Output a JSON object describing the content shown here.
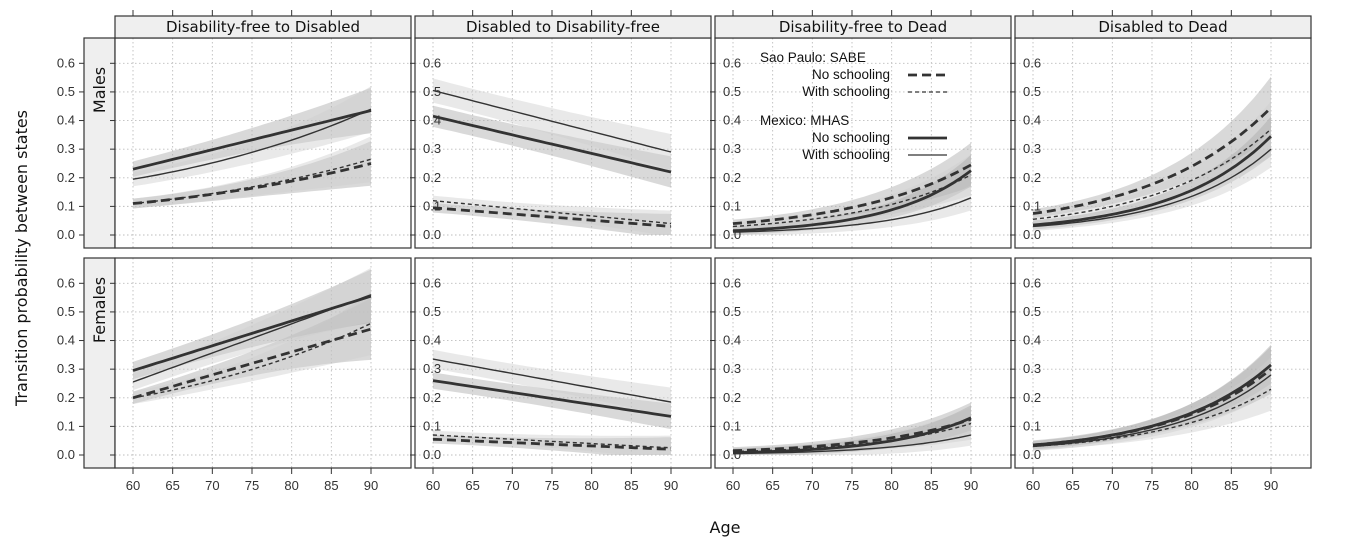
{
  "chart_data": {
    "type": "line",
    "xlabel": "Age",
    "ylabel": "Transition probability between states",
    "x": [
      60,
      90
    ],
    "x_ticks": [
      "60",
      "65",
      "70",
      "75",
      "80",
      "85",
      "90"
    ],
    "y_ticks": [
      "0.0",
      "0.1",
      "0.2",
      "0.3",
      "0.4",
      "0.5",
      "0.6"
    ],
    "ylim": [
      0,
      0.65
    ],
    "grid": true,
    "legend": {
      "placement": "inside third top panel",
      "groups": [
        {
          "title": "Sao Paulo: SABE",
          "entries": [
            "No schooling",
            "With schooling"
          ]
        },
        {
          "title": "Mexico: MHAS",
          "entries": [
            "No schooling",
            "With schooling"
          ]
        }
      ]
    },
    "colors": {
      "lines": "#333333",
      "band_light": "#cfcfcf",
      "band_dark": "#aaaaaa",
      "strip_bg": "#efefef"
    },
    "column_titles": [
      "Disability-free to Disabled",
      "Disabled to Disability-free",
      "Disability-free to Dead",
      "Disabled to Dead"
    ],
    "row_titles": [
      "Males",
      "Females"
    ],
    "panels": [
      {
        "row": "Males",
        "column": "Disability-free to Disabled",
        "series": [
          {
            "group": "Sao Paulo: SABE",
            "schooling": "No schooling",
            "y_at_60": 0.11,
            "y_at_90": 0.25
          },
          {
            "group": "Sao Paulo: SABE",
            "schooling": "With schooling",
            "y_at_60": 0.11,
            "y_at_90": 0.265
          },
          {
            "group": "Mexico: MHAS",
            "schooling": "No schooling",
            "y_at_60": 0.23,
            "y_at_90": 0.435
          },
          {
            "group": "Mexico: MHAS",
            "schooling": "With schooling",
            "y_at_60": 0.195,
            "y_at_90": 0.44
          }
        ]
      },
      {
        "row": "Males",
        "column": "Disabled to Disability-free",
        "series": [
          {
            "group": "Sao Paulo: SABE",
            "schooling": "No schooling",
            "y_at_60": 0.095,
            "y_at_90": 0.03
          },
          {
            "group": "Sao Paulo: SABE",
            "schooling": "With schooling",
            "y_at_60": 0.12,
            "y_at_90": 0.04
          },
          {
            "group": "Mexico: MHAS",
            "schooling": "No schooling",
            "y_at_60": 0.415,
            "y_at_90": 0.22
          },
          {
            "group": "Mexico: MHAS",
            "schooling": "With schooling",
            "y_at_60": 0.505,
            "y_at_90": 0.29
          }
        ]
      },
      {
        "row": "Males",
        "column": "Disability-free to Dead",
        "series": [
          {
            "group": "Sao Paulo: SABE",
            "schooling": "No schooling",
            "y_at_60": 0.04,
            "y_at_90": 0.245
          },
          {
            "group": "Sao Paulo: SABE",
            "schooling": "With schooling",
            "y_at_60": 0.03,
            "y_at_90": 0.21
          },
          {
            "group": "Mexico: MHAS",
            "schooling": "No schooling",
            "y_at_60": 0.015,
            "y_at_90": 0.225
          },
          {
            "group": "Mexico: MHAS",
            "schooling": "With schooling",
            "y_at_60": 0.01,
            "y_at_90": 0.13
          }
        ]
      },
      {
        "row": "Males",
        "column": "Disabled to Dead",
        "series": [
          {
            "group": "Sao Paulo: SABE",
            "schooling": "No schooling",
            "y_at_60": 0.075,
            "y_at_90": 0.445
          },
          {
            "group": "Sao Paulo: SABE",
            "schooling": "With schooling",
            "y_at_60": 0.055,
            "y_at_90": 0.37
          },
          {
            "group": "Mexico: MHAS",
            "schooling": "No schooling",
            "y_at_60": 0.035,
            "y_at_90": 0.345
          },
          {
            "group": "Mexico: MHAS",
            "schooling": "With schooling",
            "y_at_60": 0.03,
            "y_at_90": 0.3
          }
        ]
      },
      {
        "row": "Females",
        "column": "Disability-free to Disabled",
        "series": [
          {
            "group": "Sao Paulo: SABE",
            "schooling": "No schooling",
            "y_at_60": 0.2,
            "y_at_90": 0.44
          },
          {
            "group": "Sao Paulo: SABE",
            "schooling": "With schooling",
            "y_at_60": 0.2,
            "y_at_90": 0.46
          },
          {
            "group": "Mexico: MHAS",
            "schooling": "No schooling",
            "y_at_60": 0.295,
            "y_at_90": 0.555
          },
          {
            "group": "Mexico: MHAS",
            "schooling": "With schooling",
            "y_at_60": 0.255,
            "y_at_90": 0.56
          }
        ]
      },
      {
        "row": "Females",
        "column": "Disabled to Disability-free",
        "series": [
          {
            "group": "Sao Paulo: SABE",
            "schooling": "No schooling",
            "y_at_60": 0.055,
            "y_at_90": 0.02
          },
          {
            "group": "Sao Paulo: SABE",
            "schooling": "With schooling",
            "y_at_60": 0.07,
            "y_at_90": 0.025
          },
          {
            "group": "Mexico: MHAS",
            "schooling": "No schooling",
            "y_at_60": 0.26,
            "y_at_90": 0.135
          },
          {
            "group": "Mexico: MHAS",
            "schooling": "With schooling",
            "y_at_60": 0.335,
            "y_at_90": 0.185
          }
        ]
      },
      {
        "row": "Females",
        "column": "Disability-free to Dead",
        "series": [
          {
            "group": "Sao Paulo: SABE",
            "schooling": "No schooling",
            "y_at_60": 0.015,
            "y_at_90": 0.125
          },
          {
            "group": "Sao Paulo: SABE",
            "schooling": "With schooling",
            "y_at_60": 0.012,
            "y_at_90": 0.11
          },
          {
            "group": "Mexico: MHAS",
            "schooling": "No schooling",
            "y_at_60": 0.008,
            "y_at_90": 0.13
          },
          {
            "group": "Mexico: MHAS",
            "schooling": "With schooling",
            "y_at_60": 0.005,
            "y_at_90": 0.07
          }
        ]
      },
      {
        "row": "Females",
        "column": "Disabled to Dead",
        "series": [
          {
            "group": "Sao Paulo: SABE",
            "schooling": "No schooling",
            "y_at_60": 0.035,
            "y_at_90": 0.3
          },
          {
            "group": "Sao Paulo: SABE",
            "schooling": "With schooling",
            "y_at_60": 0.03,
            "y_at_90": 0.23
          },
          {
            "group": "Mexico: MHAS",
            "schooling": "No schooling",
            "y_at_60": 0.035,
            "y_at_90": 0.315
          },
          {
            "group": "Mexico: MHAS",
            "schooling": "With schooling",
            "y_at_60": 0.03,
            "y_at_90": 0.28
          }
        ]
      }
    ]
  }
}
